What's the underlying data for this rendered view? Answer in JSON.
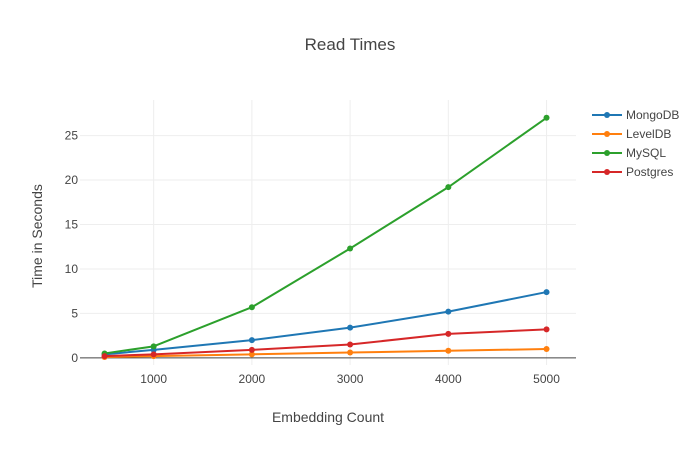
{
  "chart_data": {
    "type": "line",
    "title": "Read Times",
    "xlabel": "Embedding Count",
    "ylabel": "Time in Seconds",
    "x": [
      500,
      1000,
      2000,
      3000,
      4000,
      5000
    ],
    "xlim": [
      250,
      5300
    ],
    "ylim": [
      -0.8,
      29
    ],
    "xticks": [
      1000,
      2000,
      3000,
      4000,
      5000
    ],
    "yticks": [
      0,
      5,
      10,
      15,
      20,
      25
    ],
    "grid": true,
    "legend_position": "top-right",
    "series": [
      {
        "name": "MongoDB",
        "color": "#1f77b4",
        "values": [
          0.4,
          0.9,
          2.0,
          3.4,
          5.2,
          7.4
        ]
      },
      {
        "name": "LevelDB",
        "color": "#ff7f0e",
        "values": [
          0.1,
          0.2,
          0.4,
          0.6,
          0.8,
          1.0
        ]
      },
      {
        "name": "MySQL",
        "color": "#2ca02c",
        "values": [
          0.5,
          1.3,
          5.7,
          12.3,
          19.2,
          27.0
        ]
      },
      {
        "name": "Postgres",
        "color": "#d62728",
        "values": [
          0.2,
          0.4,
          0.9,
          1.5,
          2.7,
          3.2
        ]
      }
    ]
  }
}
